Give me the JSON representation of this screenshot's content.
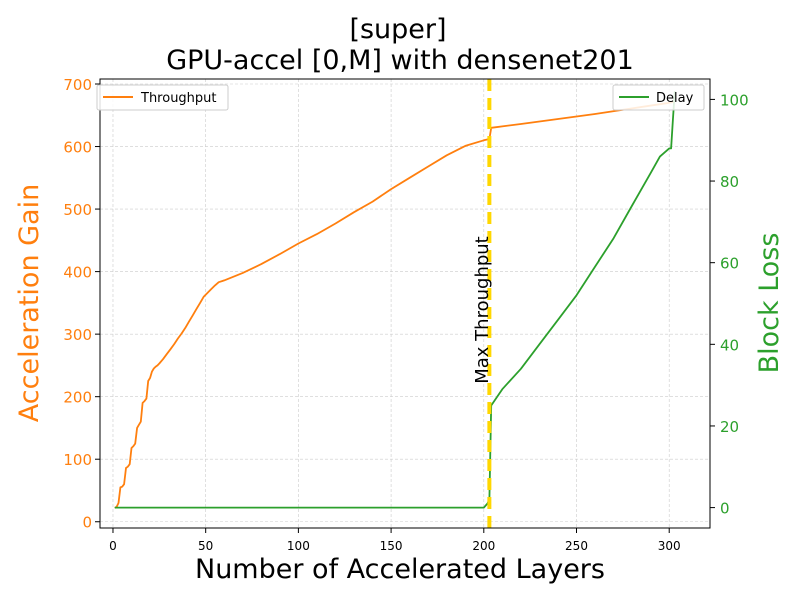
{
  "chart_data": {
    "type": "line",
    "title_lines": [
      "[super]",
      "GPU-accel [0,M] with densenet201"
    ],
    "xlabel": "Number of Accelerated Layers",
    "ylabel_left": "Acceleration Gain",
    "ylabel_right": "Block Loss",
    "xlim": [
      -7,
      322
    ],
    "ylim_left": [
      -10,
      708
    ],
    "ylim_right": [
      -5,
      105
    ],
    "x_ticks": [
      0,
      50,
      100,
      150,
      200,
      250,
      300
    ],
    "y_left_ticks": [
      0,
      100,
      200,
      300,
      400,
      500,
      600,
      700
    ],
    "y_right_ticks": [
      0,
      20,
      40,
      60,
      80,
      100
    ],
    "grid": true,
    "annotation": {
      "label": "Max Throughput",
      "x": 203,
      "color": "#ffd700"
    },
    "legend_left": {
      "placement": "upper-left",
      "label": "Throughput"
    },
    "legend_right": {
      "placement": "upper-right",
      "label": "Delay"
    },
    "series": [
      {
        "name": "Throughput",
        "axis": "left",
        "color": "#ff7f0e",
        "x": [
          1,
          2,
          3,
          4,
          5,
          6,
          7,
          8,
          9,
          10,
          11,
          12,
          13,
          14,
          15,
          16,
          17,
          18,
          19,
          20,
          21,
          22,
          23,
          24,
          25,
          27,
          29,
          31,
          33,
          35,
          37,
          39,
          41,
          43,
          45,
          47,
          49,
          51,
          53,
          55,
          57,
          59,
          60,
          70,
          80,
          90,
          100,
          110,
          120,
          130,
          140,
          150,
          160,
          170,
          180,
          190,
          200,
          203,
          204,
          220,
          240,
          260,
          280,
          300,
          303
        ],
        "values": [
          22,
          24,
          30,
          55,
          56,
          60,
          86,
          88,
          92,
          118,
          121,
          125,
          150,
          155,
          160,
          190,
          193,
          197,
          225,
          230,
          240,
          245,
          248,
          250,
          253,
          260,
          268,
          276,
          284,
          293,
          301,
          310,
          320,
          330,
          340,
          350,
          360,
          366,
          372,
          378,
          383,
          385,
          386,
          398,
          412,
          428,
          445,
          460,
          477,
          495,
          512,
          532,
          550,
          568,
          586,
          601,
          610,
          612,
          630,
          636,
          644,
          652,
          661,
          670,
          672
        ]
      },
      {
        "name": "Delay",
        "axis": "right",
        "color": "#2ca02c",
        "x": [
          1,
          50,
          100,
          150,
          200,
          202,
          203,
          204,
          210,
          220,
          230,
          240,
          250,
          260,
          270,
          280,
          290,
          295,
          300,
          301,
          302,
          303
        ],
        "values": [
          0,
          0,
          0,
          0,
          0,
          1,
          2,
          25,
          29,
          34,
          40,
          46,
          52,
          59,
          66,
          74,
          82,
          86,
          88,
          88,
          95,
          102
        ]
      }
    ]
  },
  "colors": {
    "throughput": "#ff7f0e",
    "delay": "#2ca02c",
    "marker": "#ffd700",
    "grid": "#cccccc"
  }
}
